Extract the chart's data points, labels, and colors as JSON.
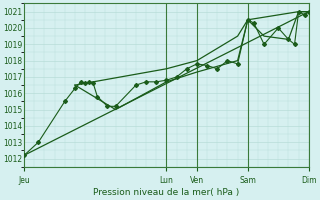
{
  "xlabel": "Pression niveau de la mer( hPa )",
  "bg_color": "#d6f0f0",
  "grid_color": "#b8ddd8",
  "line_color": "#1a5c1a",
  "dark_line_color": "#1a5c1a",
  "ylim": [
    1011.5,
    1021.5
  ],
  "yticks": [
    1012,
    1013,
    1014,
    1015,
    1016,
    1017,
    1018,
    1019,
    1020,
    1021
  ],
  "xlim": [
    0,
    14
  ],
  "day_ticks_x": [
    0,
    7.0,
    8.5,
    11.0,
    14.0
  ],
  "day_labels": [
    "Jeu",
    "Lun",
    "Ven",
    "Sam",
    "Dim"
  ],
  "vlines": [
    7.0,
    8.5,
    11.0,
    14.0
  ],
  "series_main": [
    [
      0.0,
      1012.2
    ],
    [
      0.7,
      1013.0
    ],
    [
      2.0,
      1015.5
    ],
    [
      2.5,
      1016.3
    ],
    [
      2.8,
      1016.7
    ],
    [
      3.0,
      1016.6
    ],
    [
      3.2,
      1016.7
    ],
    [
      3.4,
      1016.6
    ],
    [
      3.6,
      1015.8
    ],
    [
      4.1,
      1015.2
    ],
    [
      4.5,
      1015.2
    ],
    [
      5.5,
      1016.5
    ],
    [
      6.0,
      1016.7
    ],
    [
      6.5,
      1016.7
    ],
    [
      7.0,
      1016.8
    ],
    [
      7.5,
      1017.0
    ],
    [
      8.0,
      1017.5
    ],
    [
      8.5,
      1017.8
    ],
    [
      9.0,
      1017.7
    ],
    [
      9.5,
      1017.5
    ],
    [
      10.0,
      1018.0
    ],
    [
      10.5,
      1017.8
    ],
    [
      11.0,
      1020.5
    ],
    [
      11.3,
      1020.3
    ],
    [
      11.8,
      1019.0
    ],
    [
      12.5,
      1020.0
    ],
    [
      13.0,
      1019.3
    ],
    [
      13.3,
      1019.0
    ],
    [
      13.5,
      1021.0
    ],
    [
      13.8,
      1020.8
    ],
    [
      14.0,
      1021.0
    ]
  ],
  "series_trend": [
    [
      0.0,
      1012.2
    ],
    [
      14.0,
      1021.0
    ]
  ],
  "series_upper": [
    [
      2.5,
      1016.5
    ],
    [
      7.0,
      1017.5
    ],
    [
      8.5,
      1018.0
    ],
    [
      10.5,
      1019.5
    ],
    [
      11.0,
      1020.5
    ],
    [
      13.5,
      1021.0
    ],
    [
      14.0,
      1021.0
    ]
  ],
  "series_lower": [
    [
      2.5,
      1016.5
    ],
    [
      4.5,
      1015.0
    ],
    [
      7.0,
      1016.7
    ],
    [
      8.5,
      1017.3
    ],
    [
      10.5,
      1018.0
    ],
    [
      11.0,
      1020.5
    ],
    [
      11.8,
      1019.5
    ],
    [
      13.0,
      1019.3
    ],
    [
      13.5,
      1021.0
    ],
    [
      14.0,
      1021.0
    ]
  ]
}
